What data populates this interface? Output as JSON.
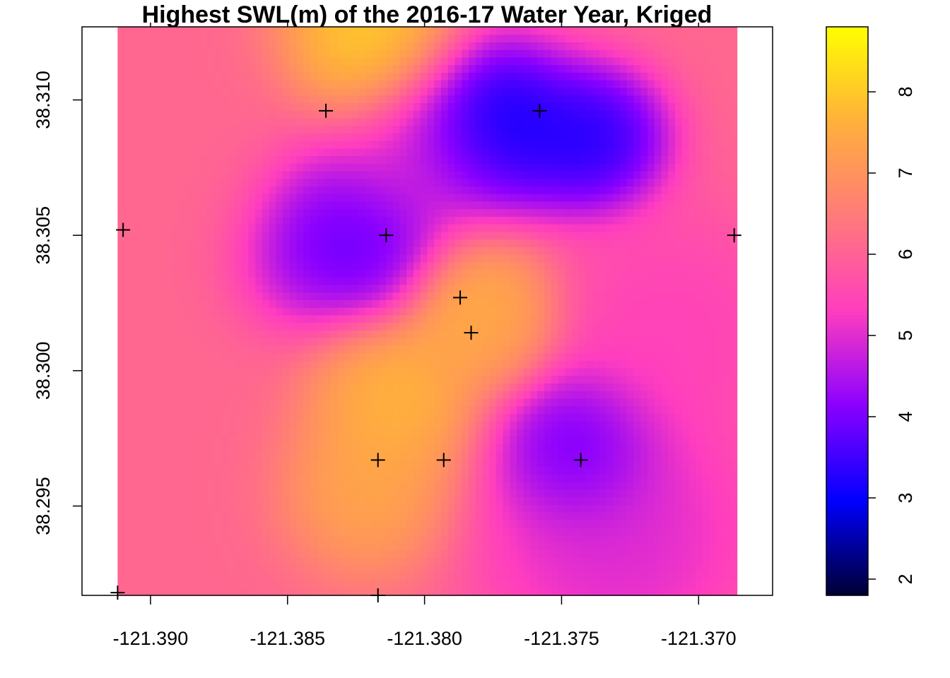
{
  "chart_data": {
    "type": "heatmap",
    "title": "Highest SWL(m) of the 2016-17 Water Year, Kriged",
    "xlabel": "",
    "ylabel": "",
    "xlim": [
      -121.3925,
      -121.3673
    ],
    "ylim": [
      38.2917,
      38.3127
    ],
    "grid_extent": {
      "x": [
        -121.3912,
        -121.3686
      ],
      "y": [
        38.2917,
        38.3127
      ]
    },
    "x_ticks": [
      -121.39,
      -121.385,
      -121.38,
      -121.375,
      -121.37
    ],
    "x_tick_labels": [
      "-121.390",
      "-121.385",
      "-121.380",
      "-121.375",
      "-121.370"
    ],
    "y_ticks": [
      38.295,
      38.3,
      38.305,
      38.31
    ],
    "y_tick_labels": [
      "38.295",
      "38.300",
      "38.305",
      "38.310"
    ],
    "colorbar": {
      "min": 1.8,
      "max": 8.8,
      "ticks": [
        2,
        3,
        4,
        5,
        6,
        7,
        8
      ],
      "tick_labels": [
        "2",
        "3",
        "4",
        "5",
        "6",
        "7",
        "8"
      ],
      "palette": [
        "#000033",
        "#0000FF",
        "#8A00FF",
        "#FF3DBF",
        "#FF7A7A",
        "#FFB03B",
        "#FFFF00"
      ]
    },
    "background_value": 6.1,
    "surface_features": [
      {
        "x": -121.382,
        "y": 38.3123,
        "value": 8.6,
        "spread": 0.0018
      },
      {
        "x": -121.3775,
        "y": 38.309,
        "value": 2.0,
        "spread": 0.0018
      },
      {
        "x": -121.3738,
        "y": 38.3085,
        "value": 2.6,
        "spread": 0.0015
      },
      {
        "x": -121.3835,
        "y": 38.305,
        "value": 3.3,
        "spread": 0.0018
      },
      {
        "x": -121.3815,
        "y": 38.3045,
        "value": 3.6,
        "spread": 0.0013
      },
      {
        "x": -121.38,
        "y": 38.3075,
        "value": 4.8,
        "spread": 0.002
      },
      {
        "x": -121.3782,
        "y": 38.3027,
        "value": 7.9,
        "spread": 0.0015
      },
      {
        "x": -121.3775,
        "y": 38.3015,
        "value": 7.5,
        "spread": 0.0013
      },
      {
        "x": -121.381,
        "y": 38.299,
        "value": 8.1,
        "spread": 0.0017
      },
      {
        "x": -121.382,
        "y": 38.2955,
        "value": 7.7,
        "spread": 0.0017
      },
      {
        "x": -121.3744,
        "y": 38.2972,
        "value": 3.2,
        "spread": 0.0016
      },
      {
        "x": -121.373,
        "y": 38.294,
        "value": 4.6,
        "spread": 0.0028
      },
      {
        "x": -121.371,
        "y": 38.3015,
        "value": 5.2,
        "spread": 0.0025
      },
      {
        "x": -121.389,
        "y": 38.308,
        "value": 6.1,
        "spread": 0.0025
      }
    ],
    "wells": [
      {
        "x": -121.3836,
        "y": 38.3096
      },
      {
        "x": -121.3758,
        "y": 38.3096
      },
      {
        "x": -121.391,
        "y": 38.3052
      },
      {
        "x": -121.3814,
        "y": 38.305
      },
      {
        "x": -121.3687,
        "y": 38.305
      },
      {
        "x": -121.3787,
        "y": 38.3027
      },
      {
        "x": -121.3783,
        "y": 38.3014
      },
      {
        "x": -121.3817,
        "y": 38.2967
      },
      {
        "x": -121.3793,
        "y": 38.2967
      },
      {
        "x": -121.3743,
        "y": 38.2967
      },
      {
        "x": -121.3912,
        "y": 38.2918
      },
      {
        "x": -121.3817,
        "y": 38.2917
      }
    ]
  }
}
